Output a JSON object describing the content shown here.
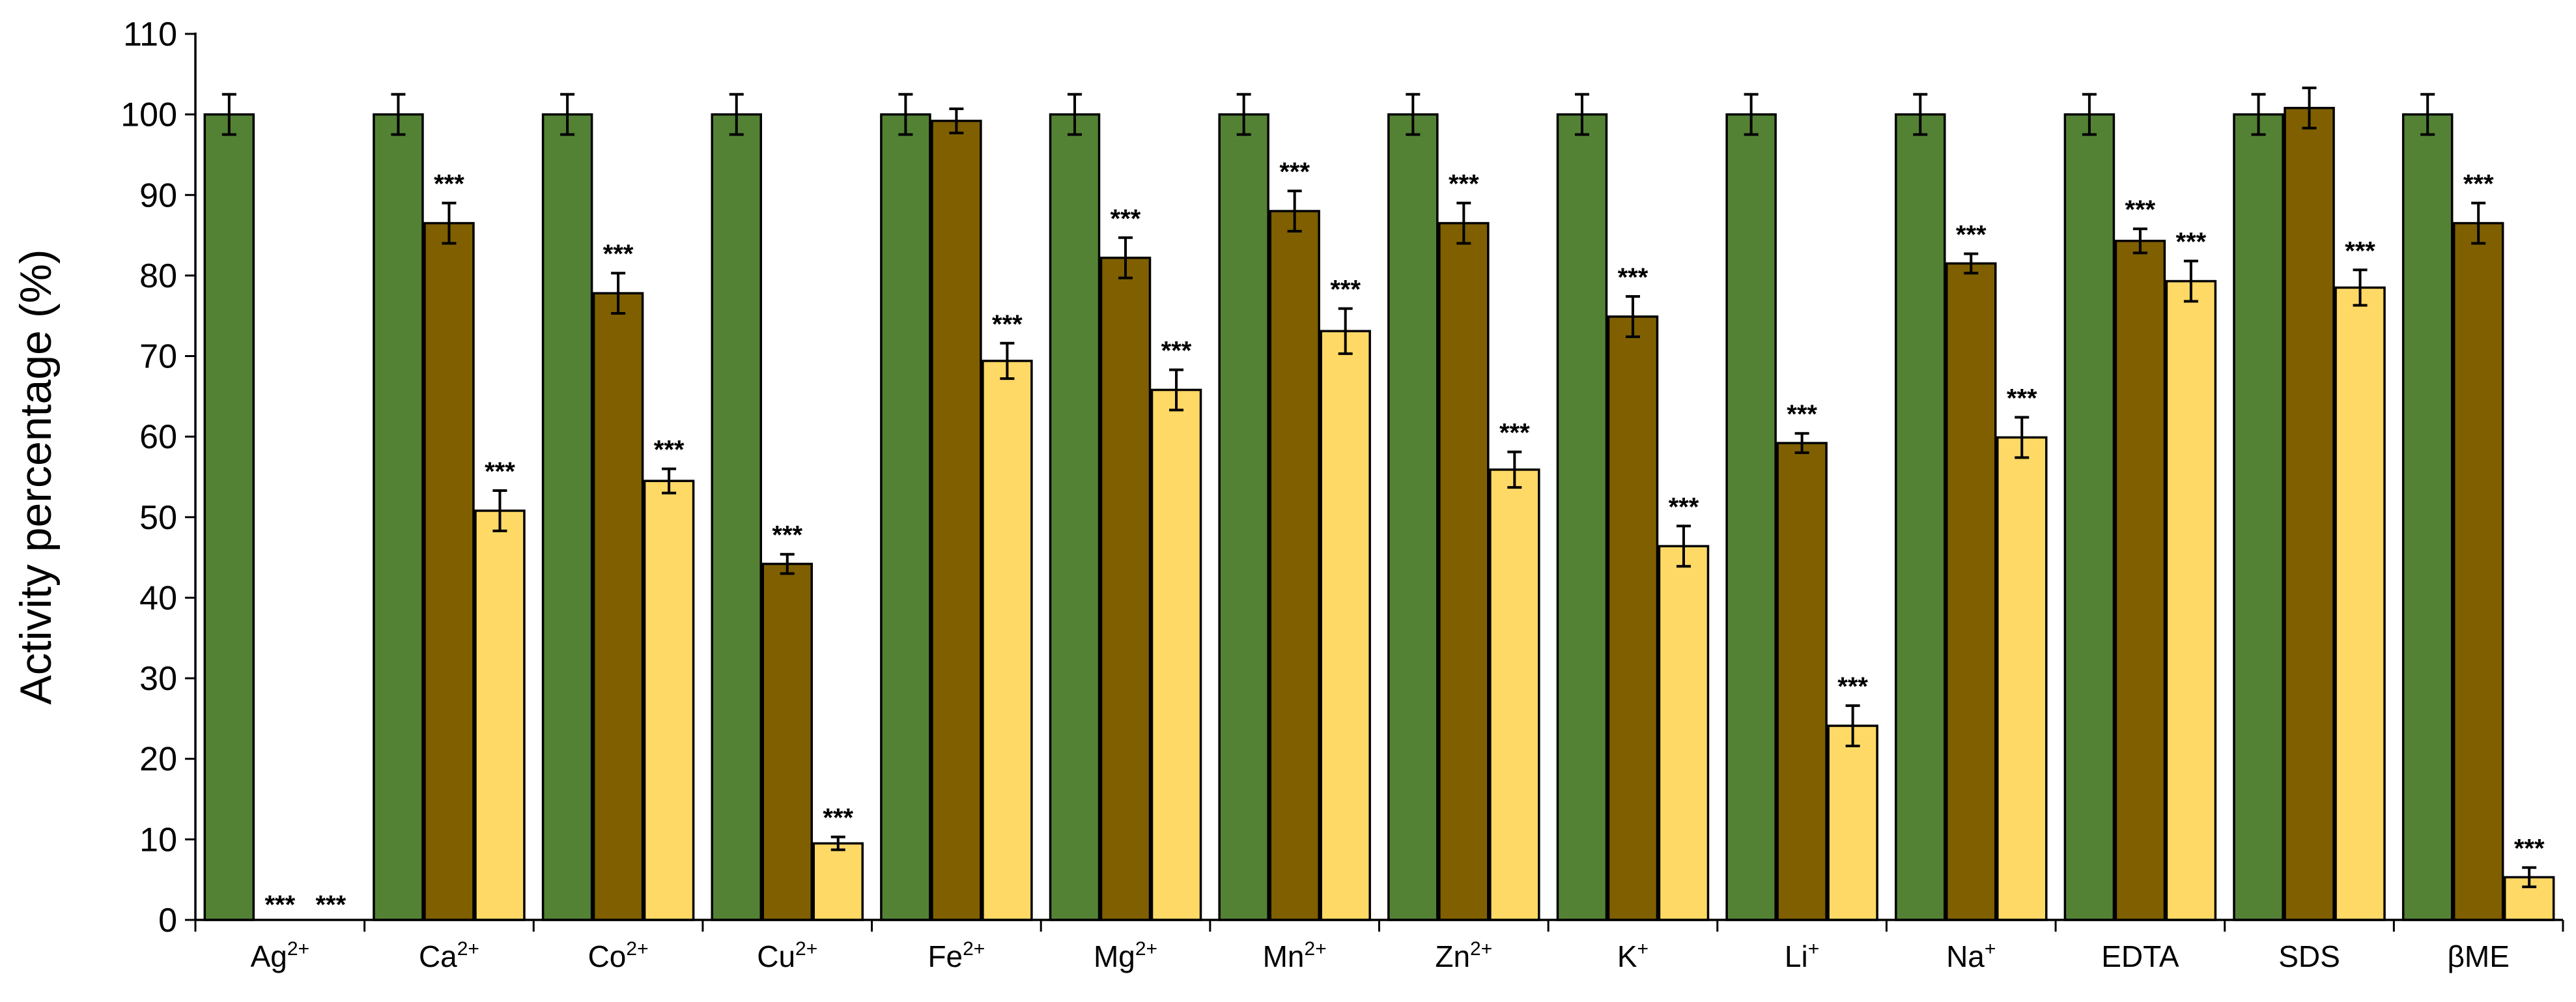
{
  "chart_data": {
    "type": "bar",
    "title": "",
    "xlabel": "",
    "ylabel": "Activity percentage (%)",
    "ylim": [
      0,
      110
    ],
    "yticks": [
      0,
      10,
      20,
      30,
      40,
      50,
      60,
      70,
      80,
      90,
      100,
      110
    ],
    "grid": false,
    "legend": "none",
    "categories": [
      {
        "base": "Ag",
        "sup": "2+"
      },
      {
        "base": "Ca",
        "sup": "2+"
      },
      {
        "base": "Co",
        "sup": "2+"
      },
      {
        "base": "Cu",
        "sup": "2+"
      },
      {
        "base": "Fe",
        "sup": "2+"
      },
      {
        "base": "Mg",
        "sup": "2+"
      },
      {
        "base": "Mn",
        "sup": "2+"
      },
      {
        "base": "Zn",
        "sup": "2+"
      },
      {
        "base": "K",
        "sup": "+"
      },
      {
        "base": "Li",
        "sup": "+"
      },
      {
        "base": "Na",
        "sup": "+"
      },
      {
        "base": "EDTA",
        "sup": ""
      },
      {
        "base": "SDS",
        "sup": ""
      },
      {
        "base": "βME",
        "sup": ""
      }
    ],
    "series": [
      {
        "color": "#548235",
        "values": [
          100,
          100,
          100,
          100,
          100,
          100,
          100,
          100,
          100,
          100,
          100,
          100,
          100,
          100
        ],
        "errors": [
          2.5,
          2.5,
          2.5,
          2.5,
          2.5,
          2.5,
          2.5,
          2.5,
          2.5,
          2.5,
          2.5,
          2.5,
          2.5,
          2.5
        ],
        "significance": [
          "",
          "",
          "",
          "",
          "",
          "",
          "",
          "",
          "",
          "",
          "",
          "",
          "",
          ""
        ]
      },
      {
        "color": "#7f5f00",
        "values": [
          0,
          86.5,
          77.8,
          44.2,
          99.2,
          82.2,
          88,
          86.5,
          74.9,
          59.2,
          81.5,
          84.3,
          100.8,
          86.5
        ],
        "errors": [
          0,
          2.5,
          2.5,
          1.2,
          1.5,
          2.5,
          2.5,
          2.5,
          2.5,
          1.2,
          1.2,
          1.5,
          2.5,
          2.5
        ],
        "significance": [
          "***",
          "***",
          "***",
          "***",
          "",
          "***",
          "***",
          "***",
          "***",
          "***",
          "***",
          "***",
          "",
          "***"
        ]
      },
      {
        "color": "#ffd966",
        "values": [
          0,
          50.8,
          54.5,
          9.5,
          69.4,
          65.8,
          73.1,
          55.9,
          46.4,
          24.1,
          59.9,
          79.3,
          78.5,
          5.3
        ],
        "errors": [
          0,
          2.5,
          1.5,
          0.8,
          2.2,
          2.5,
          2.8,
          2.2,
          2.5,
          2.5,
          2.5,
          2.5,
          2.2,
          1.2
        ],
        "significance": [
          "***",
          "***",
          "***",
          "***",
          "***",
          "***",
          "***",
          "***",
          "***",
          "***",
          "***",
          "***",
          "***",
          "***"
        ]
      }
    ]
  }
}
